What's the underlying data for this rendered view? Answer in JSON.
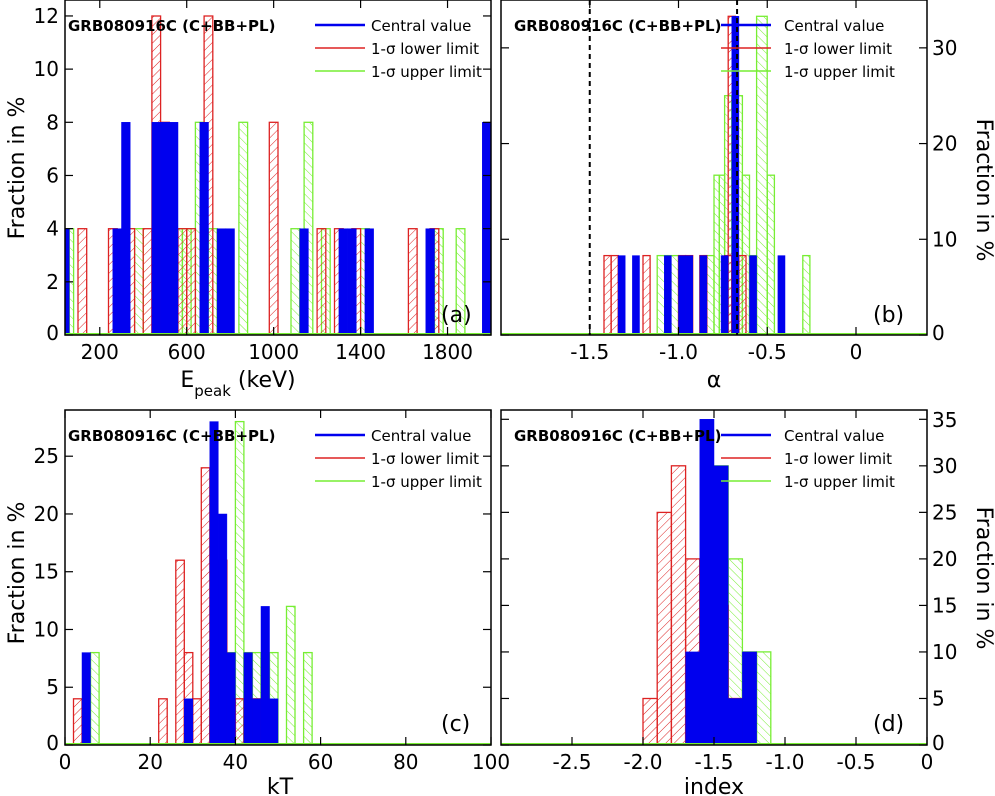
{
  "colors": {
    "central": "#0000ee",
    "lower": "#dd2222",
    "upper": "#77ee33",
    "frame": "#000000",
    "refline": "#000000"
  },
  "legend": {
    "central": "Central value",
    "lower": "1-σ lower limit",
    "upper": "1-σ upper limit"
  },
  "chart_data": [
    {
      "id": "a",
      "type": "histogram",
      "title": "GRB080916C (C+BB+PL)",
      "panel_label": "(a)",
      "xlabel": "E",
      "xlabel_sub": "peak",
      "xlabel_suffix": " (keV)",
      "ylabel": "Fraction in %",
      "y_axis_side": "left",
      "xlim": [
        40,
        2000
      ],
      "ylim": [
        0,
        12.6
      ],
      "xticks": [
        200,
        600,
        1000,
        1400,
        1800
      ],
      "xtick_labels": [
        "200",
        "600",
        "1000",
        "1400",
        "1800"
      ],
      "yticks": [
        0,
        2,
        4,
        6,
        8,
        10,
        12
      ],
      "ytick_labels": [
        "0",
        "2",
        "4",
        "6",
        "8",
        "10",
        "12"
      ],
      "vlines": [],
      "series": [
        {
          "name": "Central value",
          "style": "solid",
          "color_key": "central",
          "bins": [
            [
              40,
              60,
              4
            ],
            [
              260,
              300,
              4
            ],
            [
              300,
              340,
              8
            ],
            [
              440,
              480,
              8
            ],
            [
              480,
              520,
              8
            ],
            [
              520,
              560,
              8
            ],
            [
              660,
              700,
              8
            ],
            [
              740,
              780,
              4
            ],
            [
              780,
              820,
              4
            ],
            [
              1120,
              1160,
              4
            ],
            [
              1300,
              1340,
              4
            ],
            [
              1340,
              1380,
              4
            ],
            [
              1420,
              1460,
              4
            ],
            [
              1700,
              1740,
              4
            ],
            [
              1960,
              2000,
              8
            ]
          ]
        },
        {
          "name": "1-σ lower limit",
          "style": "hatched",
          "color_key": "lower",
          "bins": [
            [
              100,
              140,
              4
            ],
            [
              240,
              280,
              4
            ],
            [
              320,
              360,
              4
            ],
            [
              400,
              440,
              4
            ],
            [
              440,
              480,
              12
            ],
            [
              480,
              520,
              8
            ],
            [
              560,
              600,
              4
            ],
            [
              600,
              640,
              4
            ],
            [
              680,
              720,
              12
            ],
            [
              980,
              1020,
              8
            ],
            [
              1200,
              1240,
              4
            ],
            [
              1280,
              1320,
              4
            ],
            [
              1360,
              1400,
              4
            ],
            [
              1620,
              1660,
              4
            ],
            [
              1720,
              1760,
              4
            ]
          ]
        },
        {
          "name": "1-σ upper limit",
          "style": "hatched",
          "color_key": "upper",
          "bins": [
            [
              60,
              80,
              4
            ],
            [
              360,
              400,
              4
            ],
            [
              520,
              540,
              4
            ],
            [
              540,
              580,
              4
            ],
            [
              580,
              620,
              4
            ],
            [
              640,
              680,
              8
            ],
            [
              700,
              740,
              4
            ],
            [
              840,
              880,
              8
            ],
            [
              1080,
              1120,
              4
            ],
            [
              1140,
              1180,
              8
            ],
            [
              1220,
              1260,
              4
            ],
            [
              1400,
              1440,
              4
            ],
            [
              1740,
              1780,
              4
            ],
            [
              1840,
              1880,
              4
            ]
          ]
        }
      ]
    },
    {
      "id": "b",
      "type": "histogram",
      "title": "GRB080916C (C+BB+PL)",
      "panel_label": "(b)",
      "xlabel": "α",
      "xlabel_sub": "",
      "xlabel_suffix": "",
      "ylabel": "Fraction in %",
      "y_axis_side": "right",
      "xlim": [
        -2.0,
        0.4
      ],
      "ylim": [
        0,
        35
      ],
      "xticks": [
        -1.5,
        -1.0,
        -0.5,
        0
      ],
      "xtick_labels": [
        "-1.5",
        "-1.0",
        "-0.5",
        "0"
      ],
      "yticks": [
        0,
        10,
        20,
        30
      ],
      "ytick_labels": [
        "0",
        "10",
        "20",
        "30"
      ],
      "vlines": [
        -1.5,
        -0.67
      ],
      "series": [
        {
          "name": "Central value",
          "style": "solid",
          "color_key": "central",
          "bins": [
            [
              -1.34,
              -1.3,
              8.3
            ],
            [
              -1.26,
              -1.22,
              8.3
            ],
            [
              -1.08,
              -1.04,
              8.3
            ],
            [
              -1.0,
              -0.96,
              8.3
            ],
            [
              -0.96,
              -0.92,
              8.3
            ],
            [
              -0.88,
              -0.84,
              8.3
            ],
            [
              -0.76,
              -0.72,
              8.3
            ],
            [
              -0.7,
              -0.66,
              33.3
            ],
            [
              -0.6,
              -0.56,
              8.3
            ],
            [
              -0.44,
              -0.4,
              8.3
            ]
          ]
        },
        {
          "name": "1-σ lower limit",
          "style": "hatched",
          "color_key": "lower",
          "bins": [
            [
              -1.42,
              -1.38,
              8.3
            ],
            [
              -1.38,
              -1.34,
              8.3
            ],
            [
              -1.2,
              -1.16,
              8.3
            ],
            [
              -1.0,
              -0.96,
              8.3
            ],
            [
              -0.96,
              -0.92,
              8.3
            ],
            [
              -0.88,
              -0.84,
              8.3
            ],
            [
              -0.74,
              -0.7,
              8.3
            ],
            [
              -0.72,
              -0.68,
              33.3
            ],
            [
              -0.66,
              -0.62,
              8.3
            ]
          ]
        },
        {
          "name": "1-σ upper limit",
          "style": "hatched",
          "color_key": "upper",
          "bins": [
            [
              -1.12,
              -1.06,
              8.3
            ],
            [
              -1.06,
              -1.0,
              8.3
            ],
            [
              -0.86,
              -0.8,
              8.3
            ],
            [
              -0.8,
              -0.77,
              16.7
            ],
            [
              -0.77,
              -0.74,
              16.7
            ],
            [
              -0.74,
              -0.7,
              25
            ],
            [
              -0.68,
              -0.64,
              25
            ],
            [
              -0.64,
              -0.6,
              16.7
            ],
            [
              -0.6,
              -0.56,
              8.3
            ],
            [
              -0.56,
              -0.5,
              33.3
            ],
            [
              -0.5,
              -0.46,
              16.7
            ],
            [
              -0.3,
              -0.26,
              8.3
            ]
          ]
        }
      ]
    },
    {
      "id": "c",
      "type": "histogram",
      "title": "GRB080916C (C+BB+PL)",
      "panel_label": "(c)",
      "xlabel": "kT",
      "xlabel_sub": "",
      "xlabel_suffix": "",
      "ylabel": "Fraction in %",
      "y_axis_side": "left",
      "xlim": [
        0,
        100
      ],
      "ylim": [
        0,
        29
      ],
      "xticks": [
        0,
        20,
        40,
        60,
        80,
        100
      ],
      "xtick_labels": [
        "0",
        "20",
        "40",
        "60",
        "80",
        "100"
      ],
      "yticks": [
        0,
        5,
        10,
        15,
        20,
        25
      ],
      "ytick_labels": [
        "0",
        "5",
        "10",
        "15",
        "20",
        "25"
      ],
      "vlines": [],
      "series": [
        {
          "name": "Central value",
          "style": "solid",
          "color_key": "central",
          "bins": [
            [
              4,
              6,
              8
            ],
            [
              28,
              30,
              4
            ],
            [
              34,
              36,
              28
            ],
            [
              36,
              38,
              20
            ],
            [
              38,
              40,
              8
            ],
            [
              42,
              44,
              8
            ],
            [
              44,
              46,
              4
            ],
            [
              46,
              48,
              12
            ],
            [
              48,
              50,
              4
            ]
          ]
        },
        {
          "name": "1-σ lower limit",
          "style": "hatched",
          "color_key": "lower",
          "bins": [
            [
              2,
              4,
              4
            ],
            [
              22,
              24,
              4
            ],
            [
              26,
              28,
              16
            ],
            [
              28,
              30,
              8
            ],
            [
              30,
              32,
              4
            ],
            [
              32,
              34,
              24
            ],
            [
              34,
              36,
              8
            ],
            [
              36,
              38,
              16
            ],
            [
              40,
              42,
              4
            ],
            [
              44,
              46,
              4
            ]
          ]
        },
        {
          "name": "1-σ upper limit",
          "style": "hatched",
          "color_key": "upper",
          "bins": [
            [
              6,
              8,
              8
            ],
            [
              34,
              36,
              4
            ],
            [
              38,
              40,
              8
            ],
            [
              40,
              42,
              28
            ],
            [
              42,
              44,
              8
            ],
            [
              44,
              46,
              8
            ],
            [
              46,
              48,
              4
            ],
            [
              48,
              50,
              8
            ],
            [
              52,
              54,
              12
            ],
            [
              56,
              58,
              8
            ]
          ]
        }
      ]
    },
    {
      "id": "d",
      "type": "histogram",
      "title": "GRB080916C (C+BB+PL)",
      "panel_label": "(d)",
      "xlabel": "index",
      "xlabel_sub": "",
      "xlabel_suffix": "",
      "ylabel": "Fraction in %",
      "y_axis_side": "right",
      "xlim": [
        -3.0,
        0
      ],
      "ylim": [
        0,
        36
      ],
      "xticks": [
        -2.5,
        -2.0,
        -1.5,
        -1.0,
        -0.5,
        0
      ],
      "xtick_labels": [
        "-2.5",
        "-2.0",
        "-1.5",
        "-1.0",
        "-0.5",
        "0"
      ],
      "yticks": [
        0,
        5,
        10,
        15,
        20,
        25,
        30,
        35
      ],
      "ytick_labels": [
        "0",
        "5",
        "10",
        "15",
        "20",
        "25",
        "30",
        "35"
      ],
      "vlines": [],
      "series": [
        {
          "name": "Central value",
          "style": "solid",
          "color_key": "central",
          "bins": [
            [
              -1.7,
              -1.6,
              10
            ],
            [
              -1.6,
              -1.5,
              35
            ],
            [
              -1.5,
              -1.4,
              30
            ],
            [
              -1.4,
              -1.3,
              5
            ],
            [
              -1.3,
              -1.2,
              10
            ]
          ]
        },
        {
          "name": "1-σ lower limit",
          "style": "hatched",
          "color_key": "lower",
          "bins": [
            [
              -2.0,
              -1.9,
              5
            ],
            [
              -1.9,
              -1.8,
              25
            ],
            [
              -1.8,
              -1.7,
              30
            ],
            [
              -1.7,
              -1.6,
              20
            ],
            [
              -1.6,
              -1.5,
              20
            ],
            [
              -1.5,
              -1.4,
              15
            ],
            [
              -1.4,
              -1.3,
              5
            ]
          ]
        },
        {
          "name": "1-σ upper limit",
          "style": "hatched",
          "color_key": "upper",
          "bins": [
            [
              -1.6,
              -1.5,
              20
            ],
            [
              -1.5,
              -1.4,
              30
            ],
            [
              -1.4,
              -1.3,
              20
            ],
            [
              -1.3,
              -1.2,
              10
            ],
            [
              -1.2,
              -1.1,
              10
            ]
          ]
        }
      ]
    }
  ]
}
